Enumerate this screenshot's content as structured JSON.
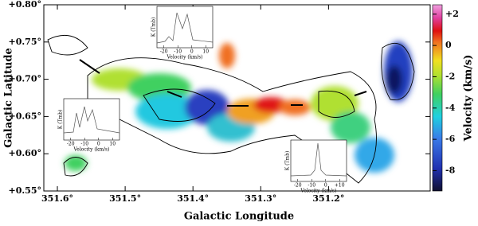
{
  "chart_data": {
    "type": "image",
    "xlabel": "Galactic Longitude",
    "ylabel": "Galactic Latitude",
    "xlim": [
      351.62,
      351.05
    ],
    "xticks": [
      {
        "value": 351.6,
        "label": "351.6°"
      },
      {
        "value": 351.5,
        "label": "351.5°"
      },
      {
        "value": 351.4,
        "label": "351.4°"
      },
      {
        "value": 351.3,
        "label": "351.3°"
      },
      {
        "value": 351.2,
        "label": "351.2°"
      }
    ],
    "ylim": [
      0.55,
      0.8
    ],
    "yticks": [
      {
        "value": 0.55,
        "label": "+0.55°"
      },
      {
        "value": 0.6,
        "label": "+0.60°"
      },
      {
        "value": 0.65,
        "label": "+0.65°"
      },
      {
        "value": 0.7,
        "label": "+0.70°"
      },
      {
        "value": 0.75,
        "label": "+0.75°"
      },
      {
        "value": 0.8,
        "label": "+0.80°"
      }
    ],
    "colorbar": {
      "label": "Velocity (km/s)",
      "lim": [
        -9.3,
        2.6
      ],
      "ticks": [
        {
          "value": 2,
          "label": "+2"
        },
        0,
        -2,
        -4,
        -6,
        -8
      ]
    },
    "insets": [
      {
        "ylabel": "K (Tmb)",
        "xlabel": "Velocity (km/s)",
        "xlim": [
          -25,
          15
        ],
        "xticks": [
          -20,
          -10,
          0,
          10
        ]
      },
      {
        "ylabel": "K (Tmb)",
        "xlabel": "Velocity (km/s)",
        "xlim": [
          -25,
          15
        ],
        "xticks": [
          -20,
          -10,
          0,
          10
        ]
      },
      {
        "ylabel": "K (Tmb)",
        "xlabel": "Velocity (km/s)",
        "xlim": [
          -25,
          15
        ],
        "xticks": [
          -20,
          -10,
          0,
          {
            "value": 10,
            "label": "+10"
          }
        ]
      }
    ]
  }
}
